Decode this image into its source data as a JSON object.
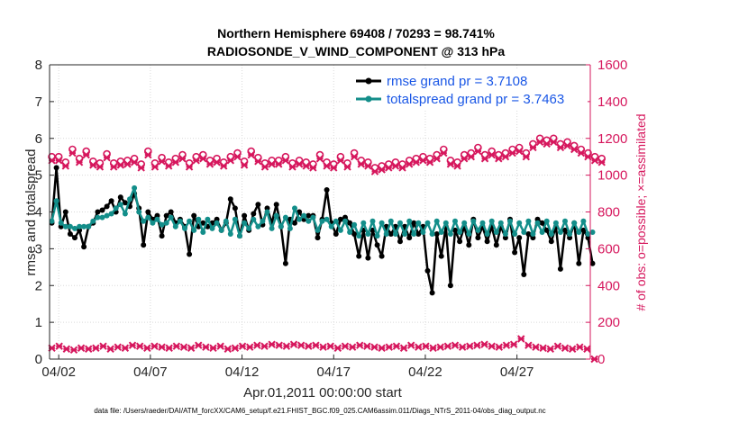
{
  "chart_data": {
    "type": "line",
    "title": "Northern Hemisphere 69408 / 70293 = 98.741%",
    "subtitle": "RADIOSONDE_V_WIND_COMPONENT @ 313 hPa",
    "xlabel": "Apr.01,2011 00:00:00 start",
    "ylabel": "rmse and totalspread",
    "ylabel_right": "# of obs: o=possible; ×=assimilated",
    "footnote": "data file: /Users/raeder/DAI/ATM_forcXX/CAM6_setup/f.e21.FHIST_BGC.f09_025.CAM6assim.011/Diags_NTrS_2011-04/obs_diag_output.nc",
    "x_ticks": [
      "04/02",
      "04/07",
      "04/12",
      "04/17",
      "04/22",
      "04/27"
    ],
    "x_tick_days": [
      1,
      6,
      11,
      16,
      21,
      26
    ],
    "y_ticks": [
      "0",
      "1",
      "2",
      "3",
      "4",
      "5",
      "6",
      "7",
      "8"
    ],
    "y_tick_values": [
      0,
      1,
      2,
      3,
      4,
      5,
      6,
      7,
      8
    ],
    "y2_ticks": [
      "0",
      "200",
      "400",
      "600",
      "800",
      "1000",
      "1200",
      "1400",
      "1600"
    ],
    "y2_tick_values": [
      0,
      200,
      400,
      600,
      800,
      1000,
      1200,
      1400,
      1600
    ],
    "xlim": [
      0.5,
      30.0
    ],
    "ylim": [
      0,
      8
    ],
    "y2lim": [
      0,
      1600
    ],
    "legend_position": "top-right",
    "x_step_days": 0.25,
    "x_start_day": 0.625,
    "series": [
      {
        "name": "rmse grand pr = 3.7108",
        "axis": "left",
        "color": "#000000",
        "marker": "dot",
        "values": [
          3.7,
          5.2,
          3.6,
          4.0,
          3.4,
          3.3,
          3.5,
          3.05,
          3.6,
          3.7,
          4.0,
          4.05,
          4.15,
          4.3,
          4.0,
          4.4,
          4.25,
          4.15,
          4.5,
          4.1,
          3.1,
          4.0,
          3.8,
          3.9,
          3.35,
          3.9,
          4.0,
          3.7,
          3.8,
          3.6,
          2.85,
          3.9,
          3.6,
          3.7,
          3.6,
          3.7,
          3.8,
          3.5,
          3.7,
          4.35,
          4.1,
          3.35,
          3.9,
          3.5,
          3.95,
          4.2,
          3.65,
          4.1,
          3.7,
          4.2,
          3.6,
          2.6,
          3.8,
          3.7,
          4.0,
          3.8,
          3.9,
          3.9,
          3.3,
          3.8,
          4.6,
          3.7,
          3.4,
          3.8,
          3.85,
          3.7,
          3.4,
          2.8,
          3.5,
          2.75,
          3.5,
          3.1,
          2.8,
          3.6,
          3.4,
          3.6,
          3.2,
          3.6,
          3.3,
          3.7,
          3.4,
          3.6,
          2.4,
          1.8,
          3.4,
          2.8,
          3.6,
          2.0,
          3.5,
          3.2,
          3.6,
          3.1,
          3.8,
          3.3,
          3.6,
          3.2,
          3.6,
          3.1,
          3.6,
          3.3,
          3.8,
          2.9,
          3.3,
          2.3,
          3.4,
          3.3,
          3.8,
          3.7,
          3.5,
          3.2,
          3.6,
          2.45,
          3.5,
          3.3,
          3.7,
          2.6,
          3.5,
          3.3,
          2.6
        ],
        "label": "rmse grand pr = 3.7108"
      },
      {
        "name": "totalspread grand pr = 3.7463",
        "axis": "left",
        "color": "#138e8a",
        "marker": "dot",
        "values": [
          3.75,
          4.3,
          3.7,
          3.6,
          3.6,
          3.55,
          3.6,
          3.6,
          3.6,
          3.75,
          3.85,
          3.85,
          3.9,
          3.95,
          4.1,
          4.2,
          3.95,
          4.35,
          4.65,
          4.0,
          3.75,
          3.85,
          3.7,
          3.8,
          3.65,
          3.7,
          3.85,
          3.6,
          3.75,
          3.55,
          3.75,
          3.5,
          3.8,
          3.45,
          3.8,
          3.55,
          3.7,
          3.5,
          3.75,
          3.4,
          3.8,
          3.35,
          3.7,
          3.55,
          3.8,
          3.6,
          3.75,
          4.0,
          3.55,
          3.9,
          3.6,
          3.85,
          3.55,
          4.1,
          3.8,
          3.9,
          3.75,
          3.85,
          3.5,
          3.75,
          3.8,
          3.6,
          3.75,
          3.5,
          3.75,
          3.45,
          3.65,
          3.35,
          3.7,
          3.4,
          3.75,
          3.35,
          3.7,
          3.4,
          3.75,
          3.4,
          3.7,
          3.4,
          3.75,
          3.4,
          3.7,
          3.45,
          3.7,
          3.4,
          3.75,
          3.45,
          3.7,
          3.4,
          3.75,
          3.45,
          3.7,
          3.4,
          3.75,
          3.5,
          3.7,
          3.4,
          3.75,
          3.45,
          3.7,
          3.4,
          3.75,
          3.4,
          3.7,
          3.45,
          3.75,
          3.4,
          3.7,
          3.45,
          3.75,
          3.4,
          3.7,
          3.45,
          3.75,
          3.4,
          3.7,
          3.45,
          3.75,
          3.4,
          3.45
        ],
        "label": "totalspread grand pr = 3.7463"
      },
      {
        "name": "obs possible",
        "axis": "right",
        "color": "#d6175d",
        "marker": "o",
        "values": [
          1100,
          1100,
          1070,
          1140,
          1090,
          1130,
          1075,
          1065,
          1115,
          1065,
          1075,
          1080,
          1090,
          1060,
          1130,
          1065,
          1095,
          1070,
          1090,
          1110,
          1065,
          1100,
          1110,
          1080,
          1090,
          1070,
          1100,
          1120,
          1075,
          1130,
          1095,
          1065,
          1080,
          1080,
          1100,
          1065,
          1080,
          1070,
          1060,
          1110,
          1070,
          1060,
          1100,
          1065,
          1120,
          1080,
          1070,
          1040,
          1050,
          1060,
          1070,
          1060,
          1080,
          1090,
          1100,
          1090,
          1110,
          1140,
          1080,
          1070,
          1110,
          1120,
          1150,
          1110,
          1130,
          1110,
          1120,
          1140,
          1150,
          1120,
          1170,
          1200,
          1190,
          1200,
          1170,
          1180,
          1160,
          1140,
          1120,
          1100,
          1090
        ],
        "x_step_days": 0.375,
        "label": "possible"
      },
      {
        "name": "obs assimilated",
        "axis": "right",
        "color": "#d6175d",
        "marker": "x",
        "values": [
          1080,
          1080,
          1050,
          1120,
          1070,
          1110,
          1055,
          1045,
          1095,
          1045,
          1055,
          1060,
          1070,
          1040,
          1110,
          1045,
          1075,
          1050,
          1070,
          1090,
          1045,
          1080,
          1090,
          1060,
          1070,
          1050,
          1080,
          1100,
          1055,
          1110,
          1075,
          1045,
          1060,
          1060,
          1080,
          1045,
          1060,
          1050,
          1040,
          1090,
          1050,
          1040,
          1080,
          1045,
          1100,
          1060,
          1050,
          1020,
          1030,
          1040,
          1050,
          1040,
          1060,
          1070,
          1080,
          1070,
          1090,
          1120,
          1060,
          1050,
          1090,
          1100,
          1130,
          1090,
          1110,
          1090,
          1100,
          1120,
          1130,
          1100,
          1150,
          1180,
          1170,
          1180,
          1150,
          1160,
          1140,
          1120,
          1100,
          1080,
          1070
        ],
        "x_step_days": 0.375,
        "label": "assimilated"
      },
      {
        "name": "obs bottom",
        "axis": "right",
        "color": "#d6175d",
        "marker": "x",
        "values": [
          60,
          70,
          55,
          50,
          60,
          55,
          60,
          70,
          55,
          65,
          60,
          75,
          70,
          60,
          70,
          65,
          60,
          70,
          65,
          60,
          75,
          65,
          60,
          70,
          55,
          60,
          70,
          65,
          75,
          70,
          80,
          75,
          70,
          80,
          75,
          70,
          75,
          65,
          70,
          60,
          70,
          65,
          75,
          70,
          65,
          60,
          65,
          70,
          60,
          75,
          65,
          70,
          60,
          65,
          70,
          75,
          65,
          70,
          75,
          80,
          70,
          65,
          75,
          80,
          110,
          75,
          65,
          60,
          55,
          70,
          60,
          55,
          65,
          55,
          0
        ],
        "x_step_days": 0.4,
        "label": "obs"
      }
    ],
    "legend": [
      {
        "label": "rmse grand pr = 3.7108",
        "color": "#000000"
      },
      {
        "label": "totalspread grand pr = 3.7463",
        "color": "#138e8a"
      }
    ]
  }
}
